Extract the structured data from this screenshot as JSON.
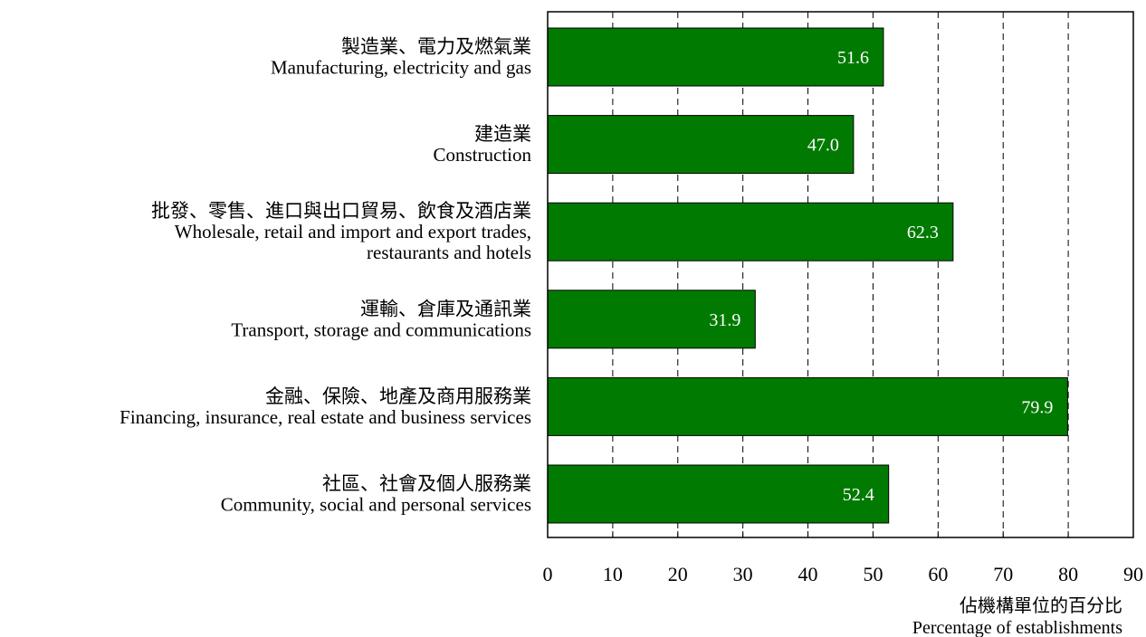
{
  "chart_data": {
    "type": "bar",
    "orientation": "horizontal",
    "categories": [
      {
        "zh": "製造業、電力及燃氣業",
        "en": [
          "Manufacturing, electricity and gas"
        ]
      },
      {
        "zh": "建造業",
        "en": [
          "Construction"
        ]
      },
      {
        "zh": "批發、零售、進口與出口貿易、飲食及酒店業",
        "en": [
          "Wholesale, retail and import and export trades,",
          "restaurants and hotels"
        ]
      },
      {
        "zh": "運輸、倉庫及通訊業",
        "en": [
          "Transport, storage and communications"
        ]
      },
      {
        "zh": "金融、保險、地產及商用服務業",
        "en": [
          "Financing, insurance, real estate and business services"
        ]
      },
      {
        "zh": "社區、社會及個人服務業",
        "en": [
          "Community, social and personal services"
        ]
      }
    ],
    "values": [
      51.6,
      47.0,
      62.3,
      31.9,
      79.9,
      52.4
    ],
    "value_labels": [
      "51.6",
      "47.0",
      "62.3",
      "31.9",
      "79.9",
      "52.4"
    ],
    "xlim": [
      0,
      90
    ],
    "xticks": [
      0,
      10,
      20,
      30,
      40,
      50,
      60,
      70,
      80,
      90
    ],
    "xlabel_zh": "佔機構單位的百分比",
    "xlabel_en": "Percentage of establishments",
    "grid": "vertical dashed",
    "bar_color": "#007a00",
    "value_label_color": "#ffffff"
  }
}
